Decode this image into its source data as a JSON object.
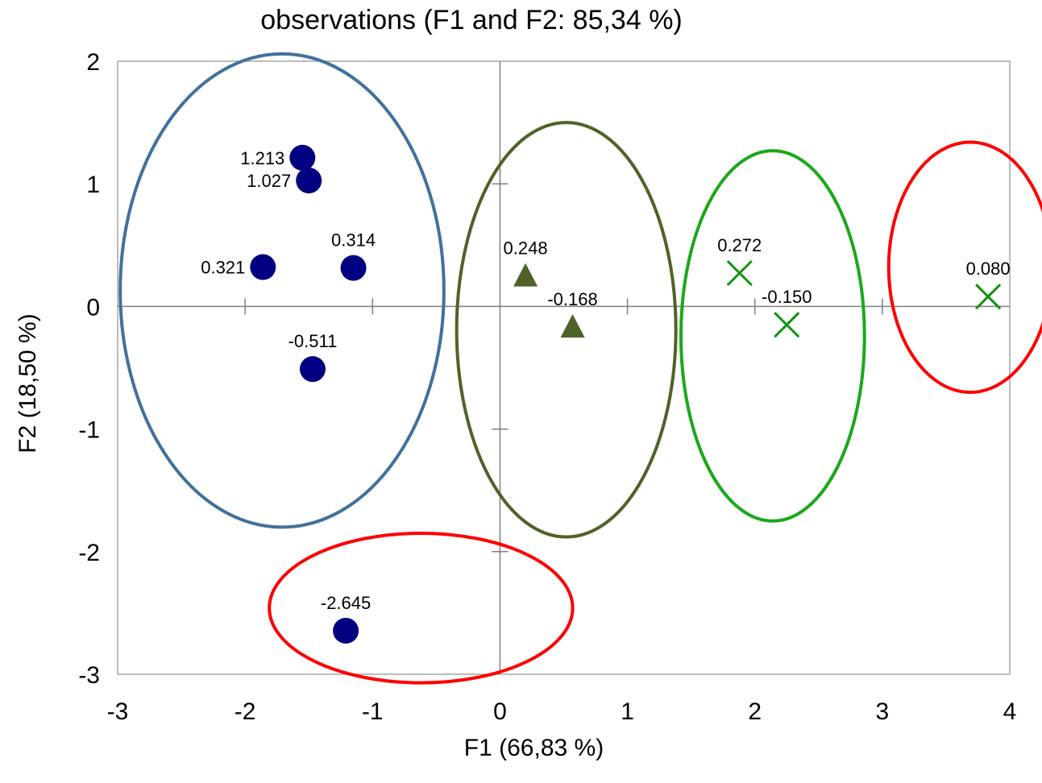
{
  "chart_data": {
    "type": "scatter",
    "title": "observations (F1 and F2: 85,34 %)",
    "xlabel": "F1 (66,83 %)",
    "ylabel": "F2 (18,50 %)",
    "xlim": [
      -3,
      4
    ],
    "ylim": [
      -3,
      2
    ],
    "x_ticks": [
      "-3",
      "-2",
      "-1",
      "0",
      "1",
      "2",
      "3",
      "4"
    ],
    "y_ticks": [
      "2",
      "1",
      "0",
      "-1",
      "-2",
      "-3"
    ],
    "grid": false,
    "series": [
      {
        "marker": "circle",
        "color": "#000080",
        "points": [
          {
            "x": -1.55,
            "y": 1.213,
            "label": "1.213"
          },
          {
            "x": -1.5,
            "y": 1.027,
            "label": "1.027"
          },
          {
            "x": -1.86,
            "y": 0.321,
            "label": "0.321"
          },
          {
            "x": -1.15,
            "y": 0.314,
            "label": "0.314"
          },
          {
            "x": -1.47,
            "y": -0.511,
            "label": "-0.511"
          },
          {
            "x": -1.21,
            "y": -2.645,
            "label": "-2.645"
          }
        ]
      },
      {
        "marker": "triangle",
        "color": "#4f6228",
        "points": [
          {
            "x": 0.2,
            "y": 0.248,
            "label": "0.248"
          },
          {
            "x": 0.57,
            "y": -0.168,
            "label": "-0.168"
          }
        ]
      },
      {
        "marker": "cross",
        "color": "#109010",
        "points": [
          {
            "x": 1.88,
            "y": 0.272,
            "label": "0.272"
          },
          {
            "x": 2.25,
            "y": -0.15,
            "label": "-0.150"
          },
          {
            "x": 3.83,
            "y": 0.08,
            "label": "0.080"
          }
        ]
      }
    ],
    "groups": [
      {
        "color": "#41719c",
        "cx": -1.71,
        "cy": 0.13,
        "rx": 1.27,
        "ry": 1.93
      },
      {
        "color": "#ff0000",
        "cx": -0.62,
        "cy": -2.46,
        "rx": 1.19,
        "ry": 0.61
      },
      {
        "color": "#4f6228",
        "cx": 0.52,
        "cy": -0.19,
        "rx": 0.86,
        "ry": 1.69
      },
      {
        "color": "#1aa81a",
        "cx": 2.14,
        "cy": -0.24,
        "rx": 0.72,
        "ry": 1.51
      },
      {
        "color": "#ff0000",
        "cx": 3.69,
        "cy": 0.32,
        "rx": 0.64,
        "ry": 1.02
      }
    ]
  }
}
